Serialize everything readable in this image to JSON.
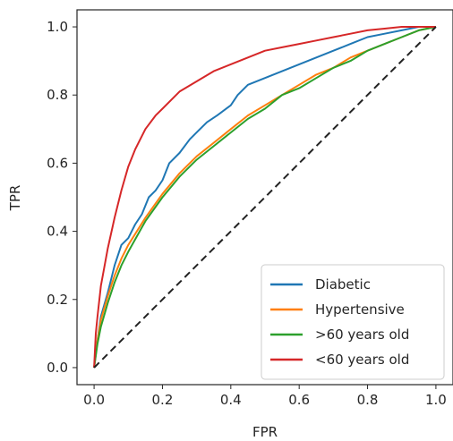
{
  "chart_data": {
    "type": "line",
    "title": "",
    "xlabel": "FPR",
    "ylabel": "TPR",
    "xlim": [
      -0.05,
      1.05
    ],
    "ylim": [
      -0.05,
      1.05
    ],
    "grid": false,
    "legend_position": "lower-right",
    "xticks": [
      "0.0",
      "0.2",
      "0.4",
      "0.6",
      "0.8",
      "1.0"
    ],
    "yticks": [
      "0.0",
      "0.2",
      "0.4",
      "0.6",
      "0.8",
      "1.0"
    ],
    "series": [
      {
        "name": "Diabetic",
        "color": "#1f77b4",
        "x": [
          0.0,
          0.01,
          0.02,
          0.04,
          0.06,
          0.08,
          0.1,
          0.12,
          0.14,
          0.16,
          0.18,
          0.2,
          0.22,
          0.25,
          0.28,
          0.3,
          0.33,
          0.36,
          0.4,
          0.42,
          0.45,
          0.5,
          0.55,
          0.6,
          0.65,
          0.7,
          0.75,
          0.8,
          0.85,
          0.9,
          0.95,
          1.0
        ],
        "y": [
          0.0,
          0.08,
          0.15,
          0.22,
          0.3,
          0.36,
          0.38,
          0.42,
          0.45,
          0.5,
          0.52,
          0.55,
          0.6,
          0.63,
          0.67,
          0.69,
          0.72,
          0.74,
          0.77,
          0.8,
          0.83,
          0.85,
          0.87,
          0.89,
          0.91,
          0.93,
          0.95,
          0.97,
          0.98,
          0.99,
          1.0,
          1.0
        ]
      },
      {
        "name": "Hypertensive",
        "color": "#ff7f0e",
        "x": [
          0.0,
          0.01,
          0.02,
          0.04,
          0.06,
          0.08,
          0.1,
          0.15,
          0.2,
          0.25,
          0.3,
          0.35,
          0.4,
          0.45,
          0.5,
          0.55,
          0.6,
          0.65,
          0.7,
          0.75,
          0.8,
          0.85,
          0.9,
          0.95,
          1.0
        ],
        "y": [
          0.0,
          0.08,
          0.14,
          0.21,
          0.27,
          0.32,
          0.36,
          0.44,
          0.51,
          0.57,
          0.62,
          0.66,
          0.7,
          0.74,
          0.77,
          0.8,
          0.83,
          0.86,
          0.88,
          0.91,
          0.93,
          0.95,
          0.97,
          0.99,
          1.0
        ]
      },
      {
        "name": ">60 years old",
        "color": "#2ca02c",
        "x": [
          0.0,
          0.01,
          0.02,
          0.04,
          0.06,
          0.08,
          0.1,
          0.15,
          0.2,
          0.25,
          0.3,
          0.35,
          0.4,
          0.45,
          0.5,
          0.55,
          0.6,
          0.65,
          0.7,
          0.75,
          0.8,
          0.85,
          0.9,
          0.95,
          1.0
        ],
        "y": [
          0.0,
          0.07,
          0.12,
          0.19,
          0.25,
          0.3,
          0.34,
          0.43,
          0.5,
          0.56,
          0.61,
          0.65,
          0.69,
          0.73,
          0.76,
          0.8,
          0.82,
          0.85,
          0.88,
          0.9,
          0.93,
          0.95,
          0.97,
          0.99,
          1.0
        ]
      },
      {
        "name": "<60 years old",
        "color": "#d62728",
        "x": [
          0.0,
          0.005,
          0.01,
          0.02,
          0.04,
          0.06,
          0.08,
          0.1,
          0.12,
          0.15,
          0.18,
          0.2,
          0.25,
          0.3,
          0.35,
          0.4,
          0.45,
          0.5,
          0.55,
          0.6,
          0.65,
          0.7,
          0.75,
          0.8,
          0.85,
          0.9,
          0.95,
          1.0
        ],
        "y": [
          0.0,
          0.1,
          0.15,
          0.24,
          0.35,
          0.44,
          0.52,
          0.59,
          0.64,
          0.7,
          0.74,
          0.76,
          0.81,
          0.84,
          0.87,
          0.89,
          0.91,
          0.93,
          0.94,
          0.95,
          0.96,
          0.97,
          0.98,
          0.99,
          0.995,
          1.0,
          1.0,
          1.0
        ]
      },
      {
        "name": "",
        "color": "#222222",
        "dashed": true,
        "legend": false,
        "x": [
          0.0,
          1.0
        ],
        "y": [
          0.0,
          1.0
        ]
      }
    ]
  }
}
